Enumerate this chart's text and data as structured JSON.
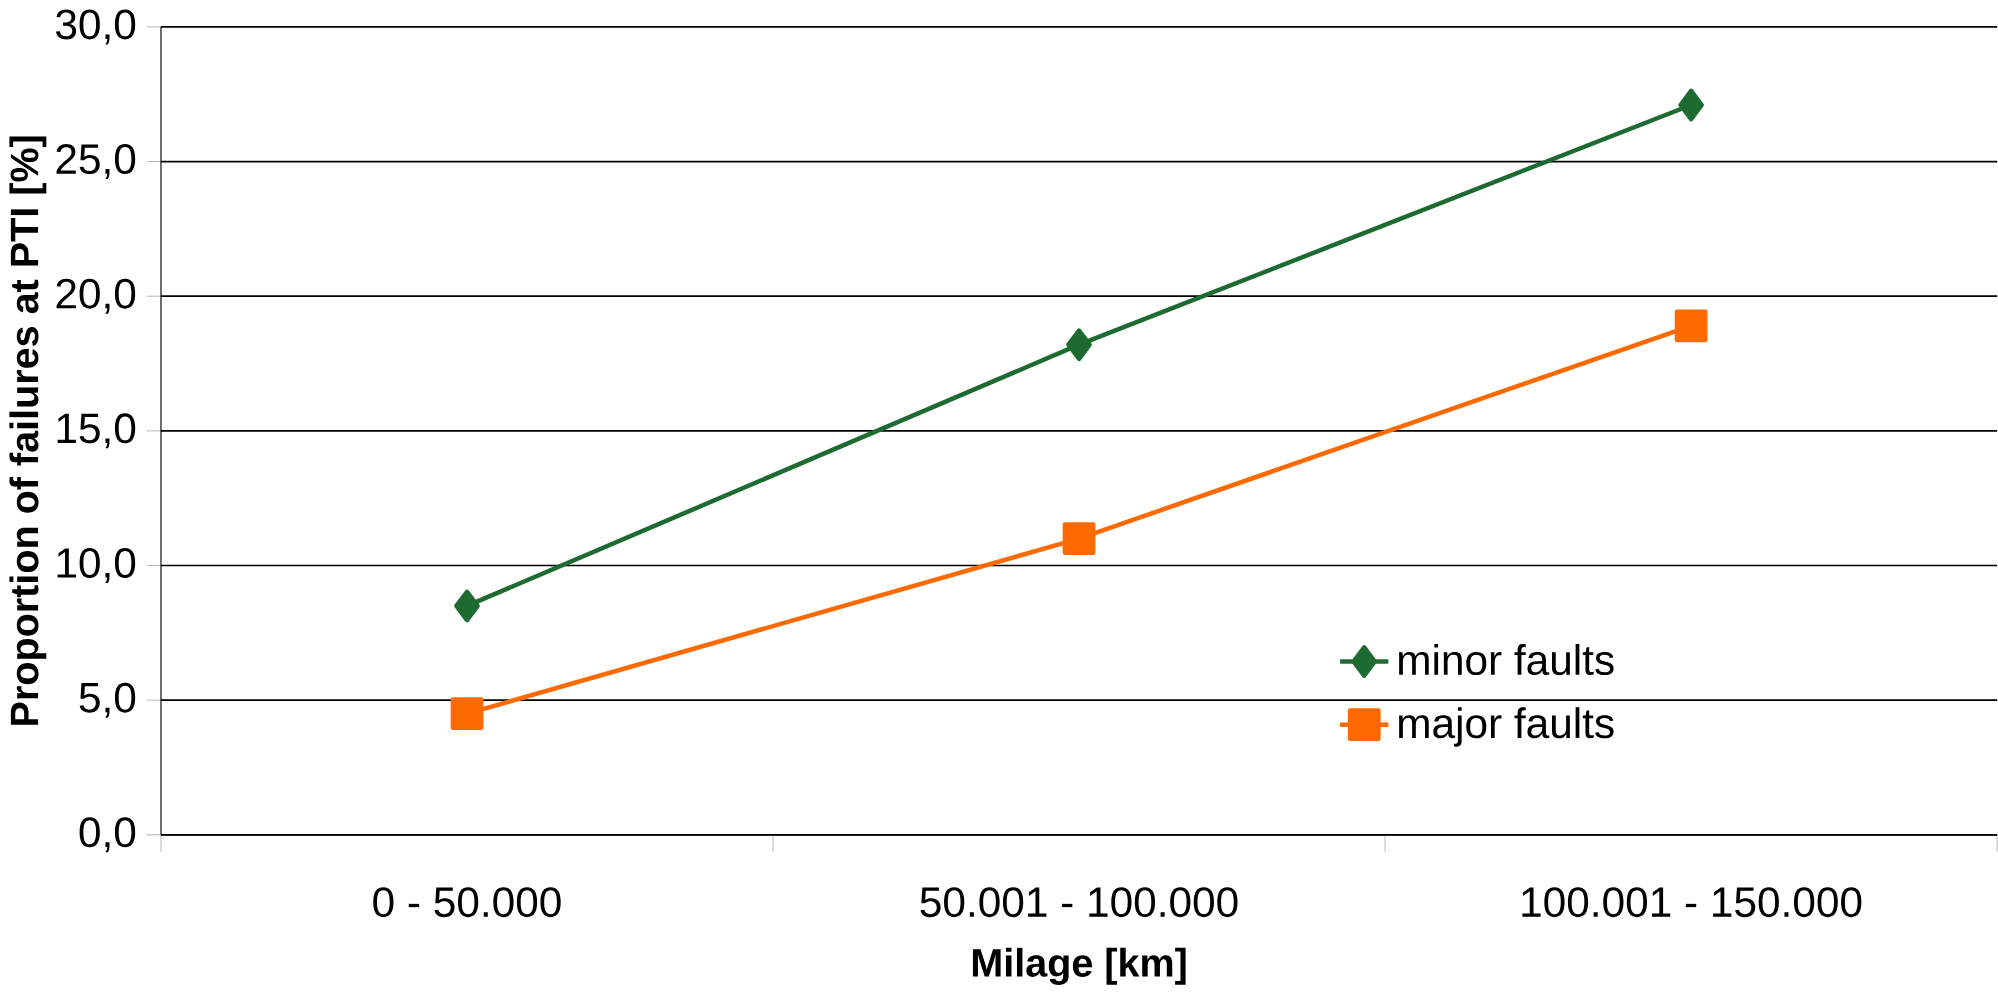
{
  "chart_data": {
    "type": "line",
    "xlabel": "Milage [km]",
    "ylabel": "Proportion of failures at PTI [%]",
    "categories": [
      "0 - 50.000",
      "50.001 - 100.000",
      "100.001 - 150.000"
    ],
    "series": [
      {
        "name": "minor faults",
        "color": "#1e6b32",
        "marker": "diamond",
        "values": [
          8.5,
          18.2,
          27.1
        ]
      },
      {
        "name": "major faults",
        "color": "#ff6a00",
        "marker": "square",
        "values": [
          4.5,
          11.0,
          18.9
        ]
      }
    ],
    "ylim": [
      0,
      30
    ],
    "yticks": [
      {
        "value": 0,
        "label": "0,0"
      },
      {
        "value": 5,
        "label": "5,0"
      },
      {
        "value": 10,
        "label": "10,0"
      },
      {
        "value": 15,
        "label": "15,0"
      },
      {
        "value": 20,
        "label": "20,0"
      },
      {
        "value": 25,
        "label": "25,0"
      },
      {
        "value": 30,
        "label": "30,0"
      }
    ],
    "grid": "y",
    "legend": "bottom right",
    "line_style": "solid"
  }
}
